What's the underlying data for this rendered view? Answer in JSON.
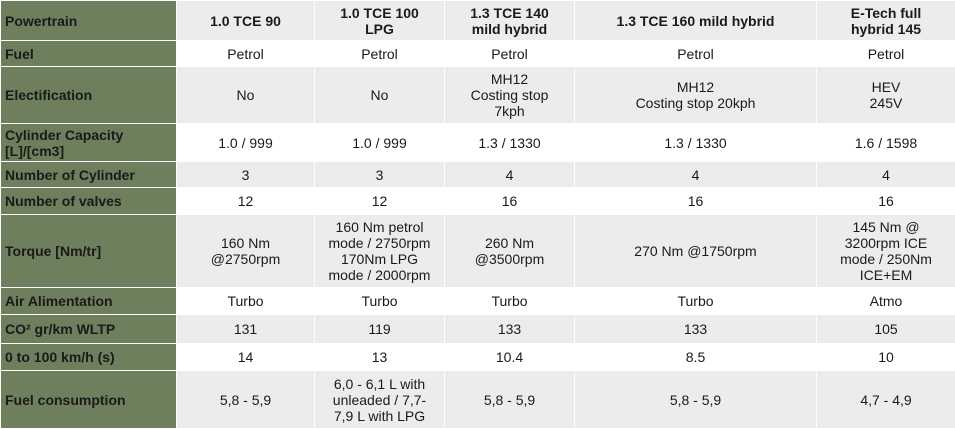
{
  "header": {
    "label": "Powertrain",
    "columns": [
      "1.0 TCE 90",
      "1.0 TCE 100\nLPG",
      "1.3 TCE 140\nmild hybrid",
      "1.3 TCE 160 mild hybrid",
      "E-Tech full\nhybrid 145"
    ]
  },
  "rows": [
    {
      "label": "Fuel",
      "values": [
        "Petrol",
        "Petrol",
        "Petrol",
        "Petrol",
        "Petrol"
      ]
    },
    {
      "label": "Electification",
      "values": [
        "No",
        "No",
        "MH12\nCosting stop\n7kph",
        "MH12\nCosting stop 20kph",
        "HEV\n245V"
      ]
    },
    {
      "label": "Cylinder Capacity\n[L]/[cm3]",
      "values": [
        "1.0 / 999",
        "1.0 / 999",
        "1.3 / 1330",
        "1.3 / 1330",
        "1.6 / 1598"
      ]
    },
    {
      "label": "Number of Cylinder",
      "values": [
        "3",
        "3",
        "4",
        "4",
        "4"
      ]
    },
    {
      "label": "Number of valves",
      "values": [
        "12",
        "12",
        "16",
        "16",
        "16"
      ]
    },
    {
      "label": "Torque [Nm/tr]",
      "values": [
        "160 Nm\n@2750rpm",
        "160 Nm petrol\nmode / 2750rpm\n170Nm LPG\nmode / 2000rpm",
        "260 Nm\n@3500rpm",
        "270 Nm @1750rpm",
        "145 Nm @\n3200rpm ICE\nmode / 250Nm\nICE+EM"
      ]
    },
    {
      "label": "Air Alimentation",
      "values": [
        "Turbo",
        "Turbo",
        "Turbo",
        "Turbo",
        "Atmo"
      ]
    },
    {
      "label": "CO² gr/km WLTP",
      "values": [
        "131",
        "119",
        "133",
        "133",
        "105"
      ]
    },
    {
      "label": "0 to 100 km/h (s)",
      "values": [
        "14",
        "13",
        "10.4",
        "8.5",
        "10"
      ]
    },
    {
      "label": "Fuel consumption",
      "values": [
        "5,8 - 5,9",
        "6,0 - 6,1 L with\nunleaded / 7,7-\n7,9 L with LPG",
        "5,8 - 5,9",
        "5,8 - 5,9",
        "4,7 - 4,9"
      ]
    }
  ],
  "colors": {
    "row_header_bg": "#6e7f5e",
    "header_bg": "#ececec",
    "stripe_bg": "#ececec",
    "cell_bg": "#ffffff"
  }
}
